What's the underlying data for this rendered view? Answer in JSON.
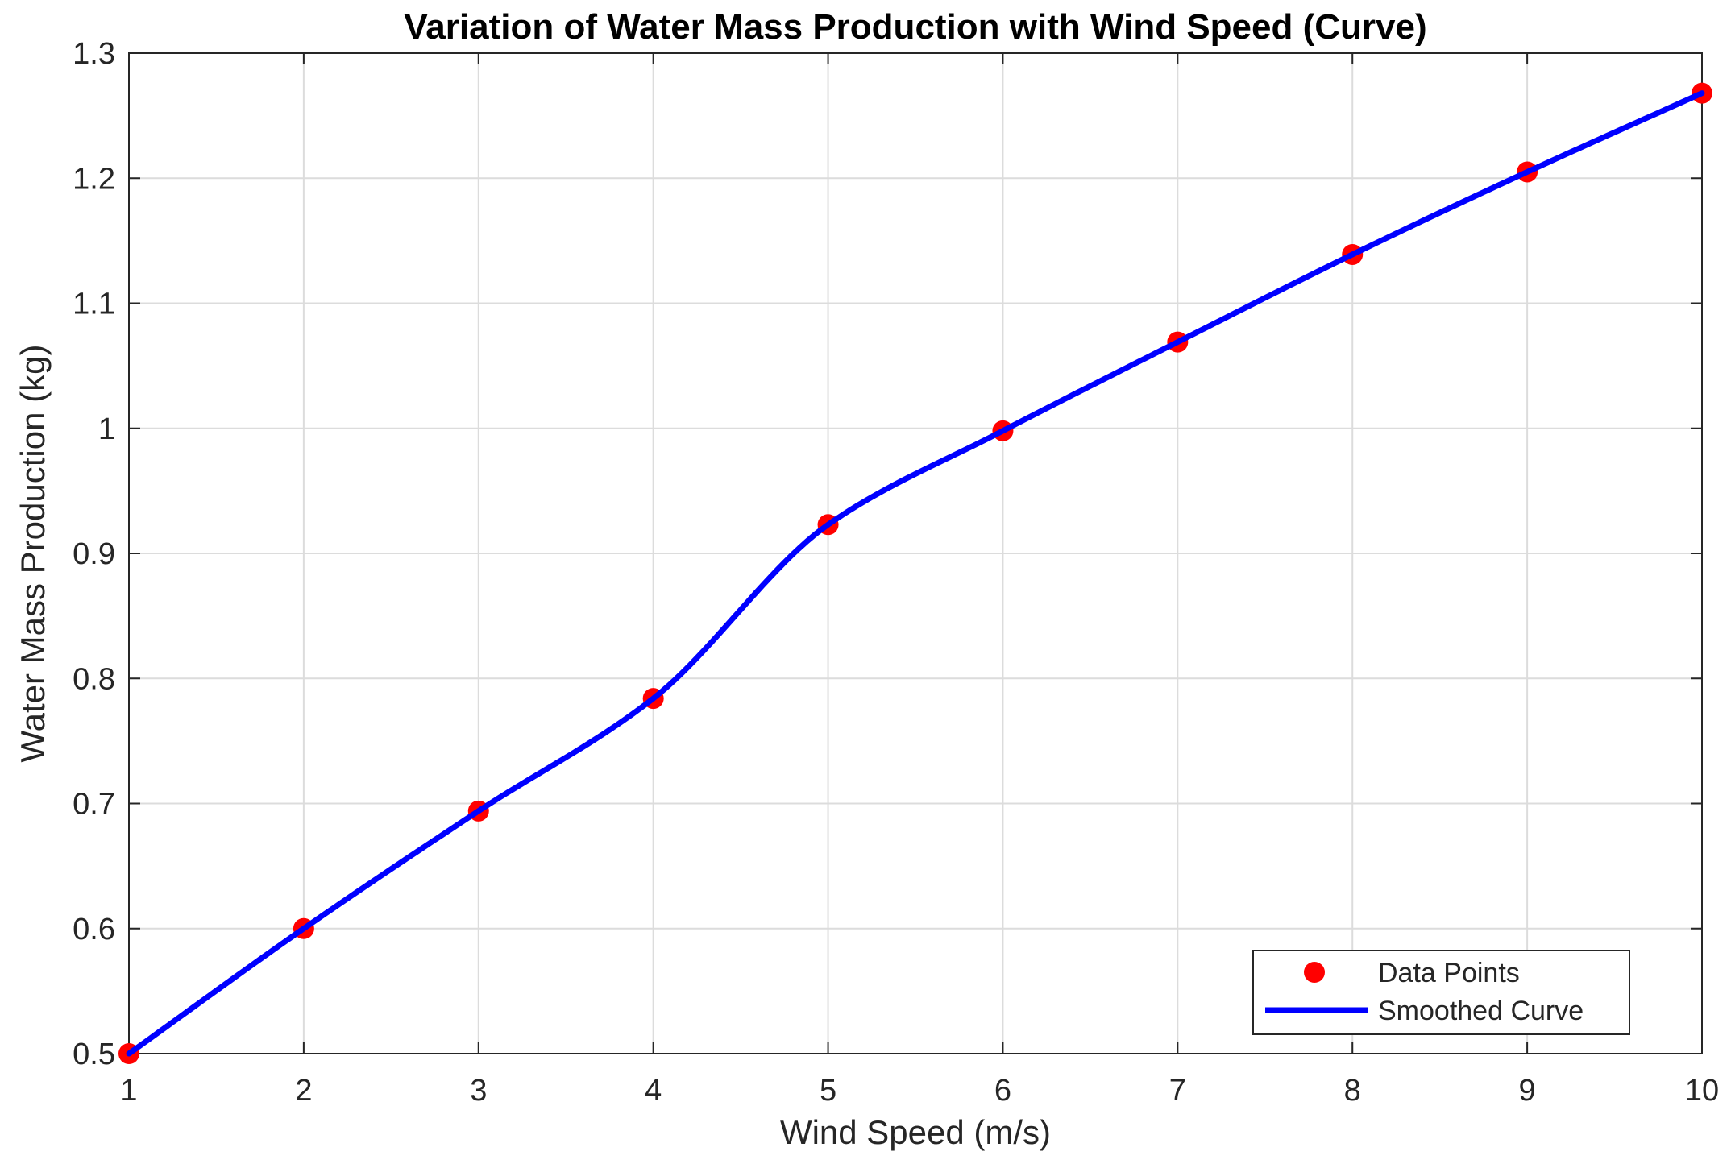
{
  "chart_data": {
    "type": "line",
    "title": "Variation of Water Mass Production with Wind Speed (Curve)",
    "xlabel": "Wind Speed (m/s)",
    "ylabel": "Water Mass Production (kg)",
    "xlim": [
      1,
      10
    ],
    "ylim": [
      0.5,
      1.3
    ],
    "xticks": [
      1,
      2,
      3,
      4,
      5,
      6,
      7,
      8,
      9,
      10
    ],
    "yticks": [
      0.5,
      0.6,
      0.7,
      0.8,
      0.9,
      1.0,
      1.1,
      1.2,
      1.3
    ],
    "xtick_labels": [
      "1",
      "2",
      "3",
      "4",
      "5",
      "6",
      "7",
      "8",
      "9",
      "10"
    ],
    "ytick_labels": [
      "0.5",
      "0.6",
      "0.7",
      "0.8",
      "0.9",
      "1",
      "1.1",
      "1.2",
      "1.3"
    ],
    "grid": true,
    "legend_position": "bottom-right",
    "series": [
      {
        "name": "Data Points",
        "kind": "scatter",
        "color": "#ff0000",
        "x": [
          1,
          2,
          3,
          4,
          5,
          6,
          7,
          8,
          9,
          10
        ],
        "y": [
          0.5,
          0.6,
          0.694,
          0.784,
          0.923,
          0.998,
          1.069,
          1.139,
          1.205,
          1.268
        ]
      },
      {
        "name": "Smoothed Curve",
        "kind": "line",
        "color": "#0000ff",
        "x": [
          1,
          2,
          3,
          4,
          5,
          6,
          7,
          8,
          9,
          10
        ],
        "y": [
          0.5,
          0.6,
          0.694,
          0.784,
          0.923,
          0.998,
          1.069,
          1.139,
          1.205,
          1.268
        ]
      }
    ]
  }
}
